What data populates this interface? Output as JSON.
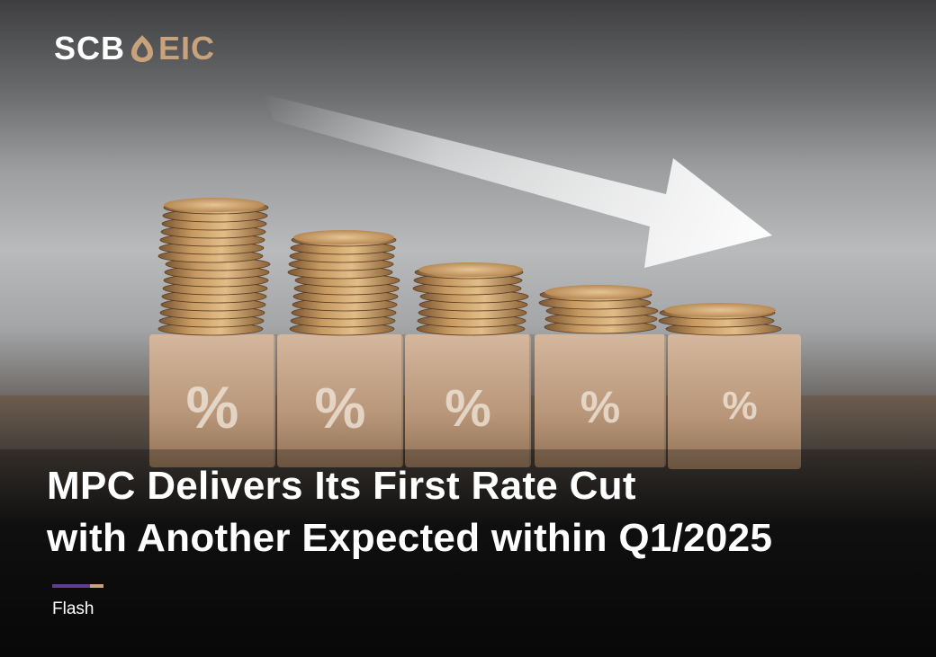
{
  "brand": {
    "left": "SCB",
    "right": "EIC",
    "mark_color": "#c8a27a",
    "text_color": "#ffffff"
  },
  "illustration": {
    "percent_symbol": "%",
    "block_count": 5,
    "arrow_direction": "down-right"
  },
  "headline": {
    "line1": "MPC Delivers Its First Rate Cut",
    "line2": "with Another Expected within Q1/2025"
  },
  "divider": {
    "colors": [
      "#5f3e8f",
      "#c8a27a"
    ]
  },
  "category": {
    "label": "Flash"
  }
}
